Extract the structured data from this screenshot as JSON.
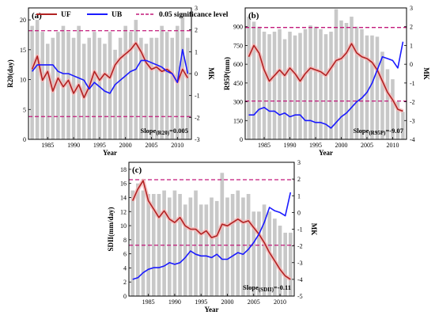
{
  "legend": {
    "uf": "UF",
    "ub": "UB",
    "sig": "0.05 significance level"
  },
  "colors": {
    "bar": "#c8c8c8",
    "uf": "#b22222",
    "uf_halo": "#f2b8b8",
    "ub": "#1a1aff",
    "sig": "#c2187a"
  },
  "chart_data": [
    {
      "type": "bar",
      "panel": "(a)",
      "ylabel": "R20(day)",
      "y2label": "MK",
      "xlabel": "Year",
      "slope_main": "Slope",
      "slope_sub": "(R20)",
      "slope_val": "=0.005",
      "ylim": [
        0,
        22
      ],
      "yticks": [
        0,
        5,
        10,
        15,
        20
      ],
      "y2lim": [
        -3,
        3
      ],
      "y2ticks": [
        -3,
        -2,
        -1,
        0,
        1,
        2,
        3
      ],
      "xlim": [
        1981.3,
        2012.7
      ],
      "xticks": [
        1985,
        1990,
        1995,
        2000,
        2005,
        2010
      ],
      "years": [
        1982,
        1983,
        1984,
        1985,
        1986,
        1987,
        1988,
        1989,
        1990,
        1991,
        1992,
        1993,
        1994,
        1995,
        1996,
        1997,
        1998,
        1999,
        2000,
        2001,
        2002,
        2003,
        2004,
        2005,
        2006,
        2007,
        2008,
        2009,
        2010,
        2011,
        2012
      ],
      "bars": [
        19,
        20,
        18,
        16,
        17,
        18,
        19,
        18,
        17,
        19,
        16,
        17,
        18,
        17,
        16,
        18,
        15,
        17,
        19,
        18,
        20,
        17,
        16,
        17,
        17,
        19,
        18,
        17,
        19,
        21,
        17
      ],
      "uf": [
        0.2,
        0.8,
        -0.3,
        0.1,
        -0.8,
        -0.2,
        -0.6,
        -0.3,
        -0.9,
        -0.5,
        -1.1,
        -0.6,
        0.1,
        -0.3,
        0.0,
        -0.2,
        0.4,
        0.7,
        0.9,
        1.1,
        1.4,
        1.0,
        0.5,
        0.2,
        0.3,
        0.1,
        0.2,
        0.0,
        -0.4,
        0.2,
        -0.2
      ],
      "ub": [
        0.1,
        0.4,
        0.4,
        0.4,
        0.4,
        0.1,
        0.0,
        0.0,
        -0.1,
        -0.2,
        -0.3,
        -0.7,
        -0.4,
        -0.6,
        -0.8,
        -0.9,
        -0.5,
        -0.3,
        -0.1,
        0.1,
        0.2,
        0.6,
        0.6,
        0.5,
        0.4,
        0.3,
        0.1,
        0.0,
        -0.4,
        1.1,
        0.0
      ],
      "sig": [
        1.96,
        -1.96
      ]
    },
    {
      "type": "bar",
      "panel": "(b)",
      "ylabel": "R95P(mm)",
      "y2label": "MK",
      "xlabel": "Year",
      "slope_main": "Slope",
      "slope_sub": "(R95P)",
      "slope_val": "=-9.07",
      "ylim": [
        0,
        1050
      ],
      "yticks": [
        0,
        150,
        300,
        450,
        600,
        750,
        900
      ],
      "y2lim": [
        -4,
        3
      ],
      "y2ticks": [
        -4,
        -3,
        -2,
        -1,
        0,
        1,
        2,
        3
      ],
      "xlim": [
        1981.3,
        2012.7
      ],
      "xticks": [
        1985,
        1990,
        1995,
        2000,
        2005,
        2010
      ],
      "years": [
        1982,
        1983,
        1984,
        1985,
        1986,
        1987,
        1988,
        1989,
        1990,
        1991,
        1992,
        1993,
        1994,
        1995,
        1996,
        1997,
        1998,
        1999,
        2000,
        2001,
        2002,
        2003,
        2004,
        2005,
        2006,
        2007,
        2008,
        2009,
        2010,
        2011,
        2012
      ],
      "bars": [
        980,
        940,
        900,
        860,
        840,
        860,
        880,
        800,
        860,
        830,
        850,
        880,
        910,
        900,
        880,
        840,
        860,
        1040,
        950,
        930,
        980,
        900,
        880,
        830,
        830,
        820,
        700,
        560,
        480,
        300,
        220
      ],
      "uf": [
        0.4,
        1.0,
        0.6,
        -0.3,
        -0.9,
        -0.6,
        -0.3,
        -0.6,
        -0.2,
        -0.5,
        -0.9,
        -0.5,
        -0.2,
        -0.3,
        -0.4,
        -0.6,
        -0.2,
        0.2,
        0.3,
        0.6,
        1.1,
        0.6,
        0.4,
        0.3,
        0.1,
        -0.3,
        -0.9,
        -1.5,
        -1.9,
        -2.4,
        -2.5
      ],
      "ub": [
        -2.7,
        -2.7,
        -2.4,
        -2.3,
        -2.5,
        -2.5,
        -2.7,
        -2.6,
        -2.8,
        -2.7,
        -2.7,
        -3.0,
        -3.0,
        -3.1,
        -3.1,
        -3.2,
        -3.4,
        -3.1,
        -2.8,
        -2.6,
        -2.3,
        -2.0,
        -1.8,
        -1.5,
        -1.0,
        -0.3,
        0.4,
        0.3,
        0.2,
        -0.2,
        1.2
      ],
      "sig": [
        1.96,
        -1.96
      ]
    },
    {
      "type": "bar",
      "panel": "(c)",
      "ylabel": "SDII(mm/day)",
      "y2label": "MK",
      "xlabel": "Year",
      "slope_main": "Slope",
      "slope_sub": "(SDII)",
      "slope_val": "=-0.11",
      "ylim": [
        0,
        19
      ],
      "yticks": [
        0,
        2,
        4,
        6,
        8,
        10,
        12,
        14,
        16,
        18
      ],
      "y2lim": [
        -5,
        3
      ],
      "y2ticks": [
        -5,
        -4,
        -3,
        -2,
        -1,
        0,
        1,
        2,
        3
      ],
      "xlim": [
        1981.3,
        2012.7
      ],
      "xticks": [
        1985,
        1990,
        1995,
        2000,
        2005,
        2010
      ],
      "years": [
        1982,
        1983,
        1984,
        1985,
        1986,
        1987,
        1988,
        1989,
        1990,
        1991,
        1992,
        1993,
        1994,
        1995,
        1996,
        1997,
        1998,
        1999,
        2000,
        2001,
        2002,
        2003,
        2004,
        2005,
        2006,
        2007,
        2008,
        2009,
        2010,
        2011,
        2012
      ],
      "bars": [
        15,
        16,
        15,
        14.5,
        14.5,
        14.5,
        15,
        14,
        15,
        14.5,
        13,
        14,
        15,
        13,
        13,
        14,
        13.5,
        17.5,
        14,
        14.5,
        15,
        14,
        14.5,
        12,
        12,
        13,
        12,
        11,
        10,
        9,
        9
      ],
      "uf": [
        0.7,
        1.4,
        1.9,
        0.7,
        0.2,
        -0.3,
        0.1,
        -0.4,
        -0.6,
        -0.3,
        -0.8,
        -1.0,
        -1.0,
        -1.3,
        -1.1,
        -1.5,
        -1.4,
        -0.7,
        -0.8,
        -0.6,
        -0.4,
        -0.6,
        -0.5,
        -0.9,
        -1.3,
        -1.8,
        -2.4,
        -2.9,
        -3.4,
        -3.8,
        -4.0
      ],
      "ub": [
        -4.0,
        -3.9,
        -3.6,
        -3.4,
        -3.3,
        -3.3,
        -3.2,
        -3.0,
        -3.1,
        -3.0,
        -2.7,
        -2.3,
        -2.5,
        -2.6,
        -2.6,
        -2.7,
        -2.5,
        -2.8,
        -2.8,
        -2.6,
        -2.4,
        -2.5,
        -2.2,
        -1.8,
        -1.3,
        -0.6,
        0.3,
        0.1,
        0.0,
        -0.2,
        1.2
      ],
      "sig": [
        1.96,
        -1.96
      ]
    }
  ]
}
